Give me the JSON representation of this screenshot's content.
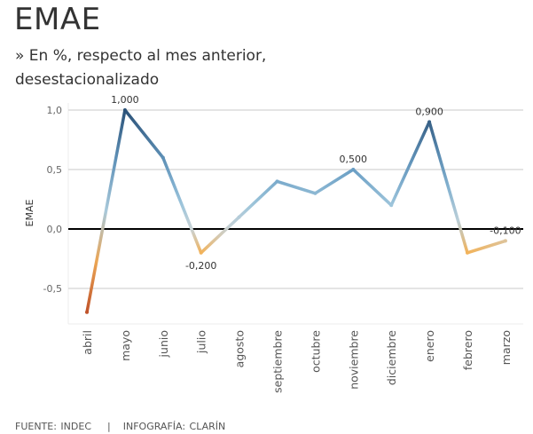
{
  "header": {
    "title": "EMAE",
    "subtitle": "» En %, respecto al mes anterior, desestacionalizado"
  },
  "footer": {
    "source": "FUENTE: INDEC",
    "separator": "|",
    "credit": "INFOGRAFÍA: CLARÍN"
  },
  "chart_data": {
    "type": "line",
    "title": "EMAE",
    "xlabel": "",
    "ylabel": "EMAE",
    "categories": [
      "abril",
      "mayo",
      "junio",
      "julio",
      "agosto",
      "septiembre",
      "octubre",
      "noviembre",
      "diciembre",
      "enero",
      "febrero",
      "marzo"
    ],
    "values": [
      -0.7,
      1.0,
      0.6,
      -0.2,
      0.1,
      0.4,
      0.3,
      0.5,
      0.2,
      0.9,
      -0.2,
      -0.1
    ],
    "ylim": [
      -0.8,
      1.05
    ],
    "yticks": [
      1.0,
      0.5,
      0.0,
      -0.5
    ],
    "ytick_labels": [
      "1,0",
      "0,5",
      "0,0",
      "-0,5"
    ],
    "grid": true,
    "data_labels": [
      {
        "category": "mayo",
        "text": "1,000",
        "position": "above"
      },
      {
        "category": "julio",
        "text": "-0,200",
        "position": "below"
      },
      {
        "category": "noviembre",
        "text": "0,500",
        "position": "above"
      },
      {
        "category": "enero",
        "text": "0,900",
        "position": "above"
      },
      {
        "category": "marzo",
        "text": "-0,100",
        "position": "above"
      }
    ],
    "color_scale": {
      "negative": "#c0532a",
      "low_negative": "#f2b35b",
      "zero": "#c9d3d6",
      "low_positive": "#9ec5db",
      "high_positive": "#2b5278"
    }
  }
}
